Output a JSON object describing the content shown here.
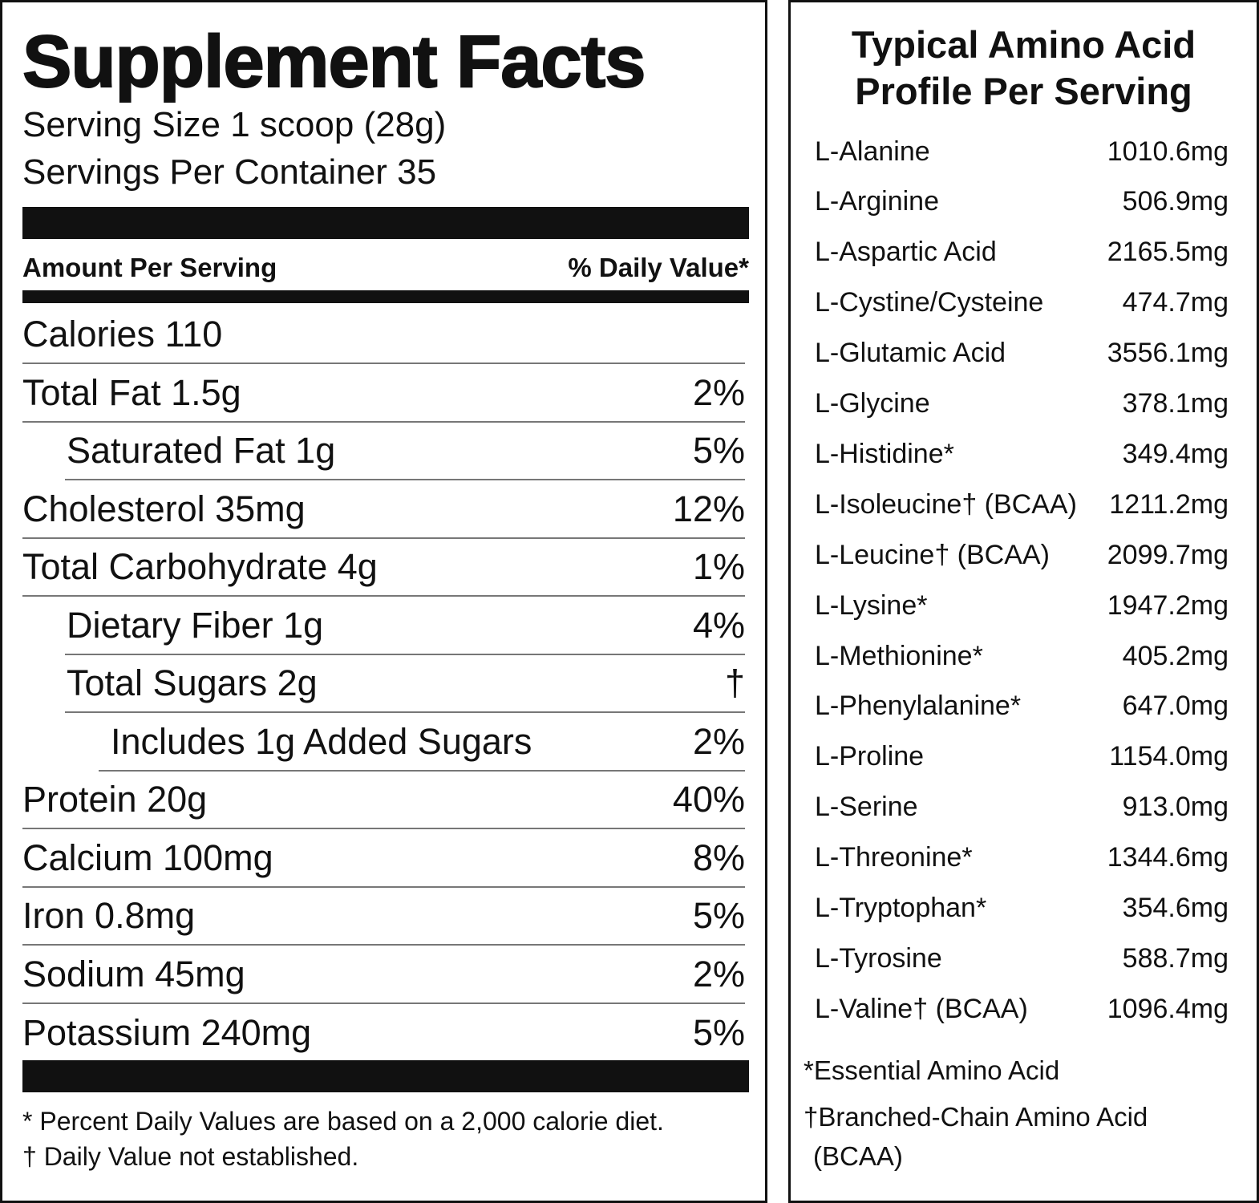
{
  "facts": {
    "title": "Supplement Facts",
    "serving_size": "Serving Size 1 scoop (28g)",
    "servings_per_container": "Servings Per Container 35",
    "header_left": "Amount Per Serving",
    "header_right": "% Daily Value*",
    "rows": [
      {
        "label": "Calories 110",
        "dv": "",
        "indent": 0
      },
      {
        "label": "Total Fat 1.5g",
        "dv": "2%",
        "indent": 0
      },
      {
        "label": "Saturated Fat 1g",
        "dv": "5%",
        "indent": 1
      },
      {
        "label": "Cholesterol 35mg",
        "dv": "12%",
        "indent": 0
      },
      {
        "label": "Total Carbohydrate 4g",
        "dv": "1%",
        "indent": 0
      },
      {
        "label": "Dietary Fiber 1g",
        "dv": "4%",
        "indent": 1
      },
      {
        "label": "Total Sugars 2g",
        "dv": "†",
        "indent": 1
      },
      {
        "label": "Includes 1g Added Sugars",
        "dv": "2%",
        "indent": 2
      },
      {
        "label": "Protein 20g",
        "dv": "40%",
        "indent": 0
      },
      {
        "label": "Calcium 100mg",
        "dv": "8%",
        "indent": 0
      },
      {
        "label": "Iron 0.8mg",
        "dv": "5%",
        "indent": 0
      },
      {
        "label": "Sodium 45mg",
        "dv": "2%",
        "indent": 0
      },
      {
        "label": "Potassium 240mg",
        "dv": "5%",
        "indent": 0
      }
    ],
    "footnote_1": "* Percent Daily Values are based on a 2,000 calorie diet.",
    "footnote_2": "† Daily Value not established."
  },
  "amino": {
    "title_line1": "Typical Amino Acid",
    "title_line2": "Profile Per Serving",
    "rows": [
      {
        "name": "L-Alanine",
        "value": "1010.6mg"
      },
      {
        "name": "L-Arginine",
        "value": "506.9mg"
      },
      {
        "name": "L-Aspartic Acid",
        "value": "2165.5mg"
      },
      {
        "name": "L-Cystine/Cysteine",
        "value": "474.7mg"
      },
      {
        "name": "L-Glutamic Acid",
        "value": "3556.1mg"
      },
      {
        "name": "L-Glycine",
        "value": "378.1mg"
      },
      {
        "name": "L-Histidine*",
        "value": "349.4mg"
      },
      {
        "name": "L-Isoleucine† (BCAA)",
        "value": "1211.2mg"
      },
      {
        "name": "L-Leucine† (BCAA)",
        "value": "2099.7mg"
      },
      {
        "name": "L-Lysine*",
        "value": "1947.2mg"
      },
      {
        "name": "L-Methionine*",
        "value": "405.2mg"
      },
      {
        "name": "L-Phenylalanine*",
        "value": "647.0mg"
      },
      {
        "name": "L-Proline",
        "value": "1154.0mg"
      },
      {
        "name": "L-Serine",
        "value": "913.0mg"
      },
      {
        "name": "L-Threonine*",
        "value": "1344.6mg"
      },
      {
        "name": "L-Tryptophan*",
        "value": "354.6mg"
      },
      {
        "name": "L-Tyrosine",
        "value": "588.7mg"
      },
      {
        "name": "L-Valine† (BCAA)",
        "value": "1096.4mg"
      }
    ],
    "footnote_1": "*Essential Amino Acid",
    "footnote_2a": "†Branched-Chain Amino Acid",
    "footnote_2b": "(BCAA)"
  }
}
